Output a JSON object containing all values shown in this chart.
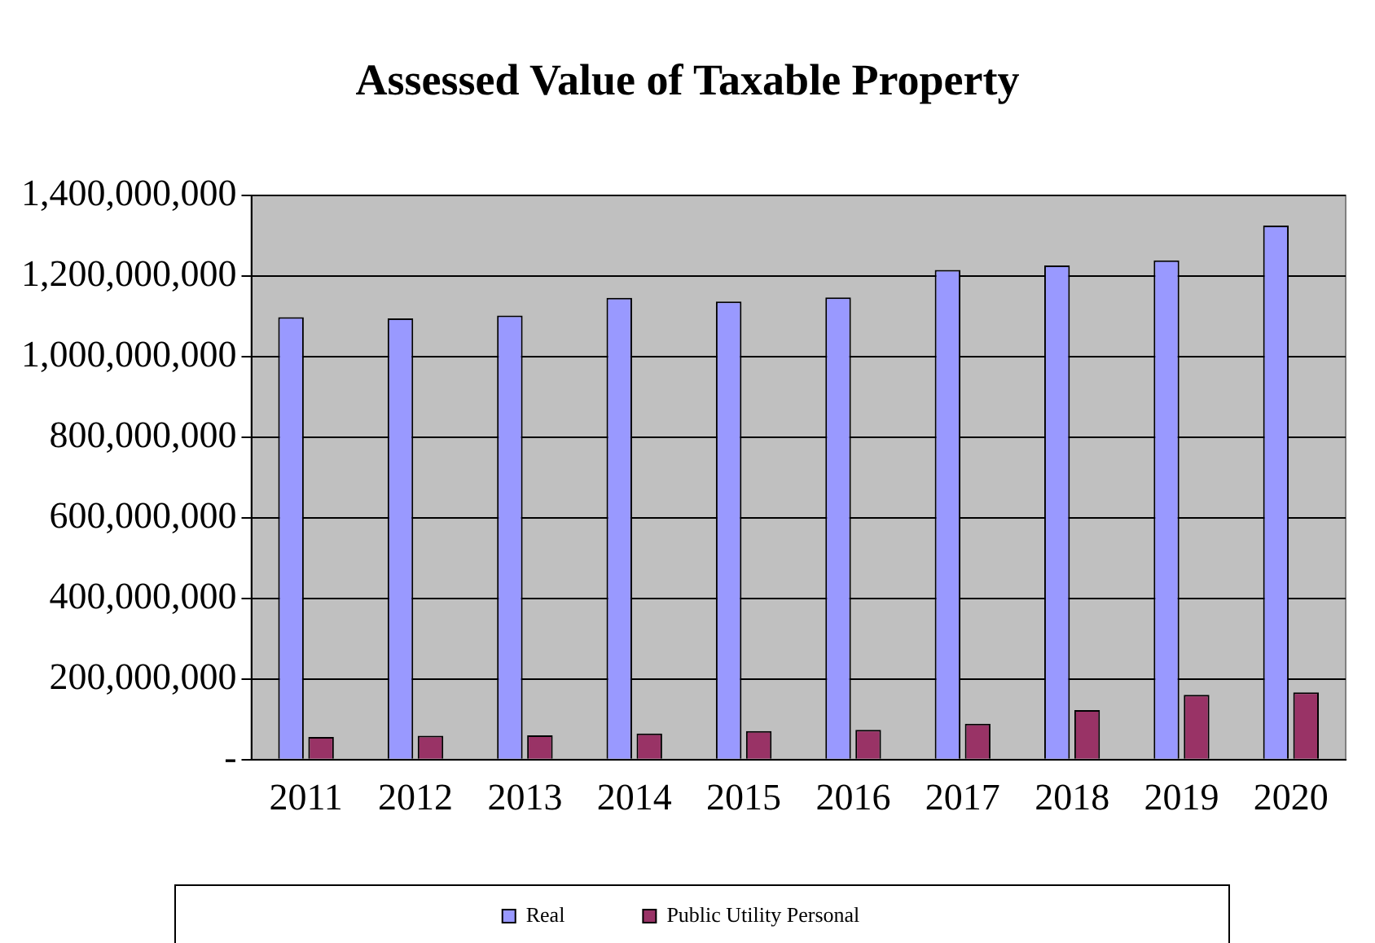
{
  "chart_data": {
    "type": "bar",
    "title": "Assessed Value of Taxable Property",
    "categories": [
      "2011",
      "2012",
      "2013",
      "2014",
      "2015",
      "2016",
      "2017",
      "2018",
      "2019",
      "2020"
    ],
    "series": [
      {
        "name": "Real",
        "color": "#9999ff",
        "values": [
          1098000000,
          1095000000,
          1102000000,
          1146000000,
          1137000000,
          1147000000,
          1215000000,
          1226000000,
          1239000000,
          1325000000
        ]
      },
      {
        "name": "Public Utility Personal",
        "color": "#993366",
        "values": [
          56000000,
          59000000,
          60000000,
          65000000,
          71000000,
          74000000,
          89000000,
          123000000,
          161000000,
          167000000
        ]
      }
    ],
    "ylim": [
      0,
      1400000000
    ],
    "yticks": [
      {
        "value": 0,
        "label": "-"
      },
      {
        "value": 200000000,
        "label": "200,000,000"
      },
      {
        "value": 400000000,
        "label": "400,000,000"
      },
      {
        "value": 600000000,
        "label": "600,000,000"
      },
      {
        "value": 800000000,
        "label": "800,000,000"
      },
      {
        "value": 1000000000,
        "label": "1,000,000,000"
      },
      {
        "value": 1200000000,
        "label": "1,200,000,000"
      },
      {
        "value": 1400000000,
        "label": "1,400,000,000"
      }
    ],
    "grid": "y",
    "legend": "bottom"
  }
}
